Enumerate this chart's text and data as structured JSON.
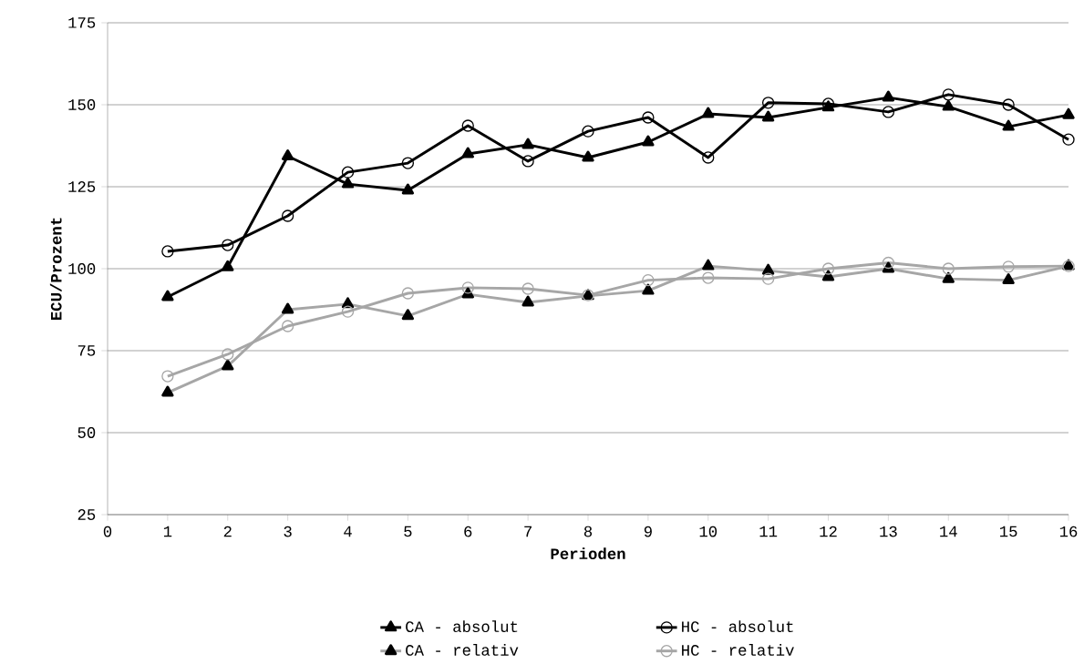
{
  "chart_data": {
    "type": "line",
    "xlabel": "Perioden",
    "ylabel": "ECU/Prozent",
    "x": [
      1,
      2,
      3,
      4,
      5,
      6,
      7,
      8,
      9,
      10,
      11,
      12,
      13,
      14,
      15,
      16
    ],
    "xlim": [
      0,
      16
    ],
    "xticks": [
      0,
      1,
      2,
      3,
      4,
      5,
      6,
      7,
      8,
      9,
      10,
      11,
      12,
      13,
      14,
      15,
      16
    ],
    "ylim": [
      25,
      175
    ],
    "yticks": [
      25,
      50,
      75,
      100,
      125,
      150,
      175
    ],
    "grid": "y",
    "legend": "bottom",
    "line_style": "solid",
    "series": [
      {
        "name": "CA - absolut",
        "color": "#000000",
        "marker": "triangle",
        "values": [
          91.4,
          100.5,
          134.3,
          125.8,
          123.9,
          135,
          137.8,
          133.9,
          138.6,
          147.2,
          146.1,
          149.2,
          152.2,
          149.4,
          143.3,
          146.9
        ]
      },
      {
        "name": "HC - absolut",
        "color": "#000000",
        "marker": "circle",
        "values": [
          105.3,
          107.2,
          116.1,
          129.4,
          132.2,
          143.6,
          132.8,
          141.9,
          146.1,
          133.9,
          150.6,
          150.3,
          147.8,
          153.1,
          150,
          139.4
        ]
      },
      {
        "name": "CA - relativ",
        "color": "#a6a6a6",
        "marker": "triangle",
        "values": [
          62.2,
          70.3,
          87.5,
          89.2,
          85.6,
          92.2,
          89.7,
          91.7,
          93.3,
          100.8,
          99.4,
          97.5,
          100,
          96.9,
          96.5,
          100.8
        ]
      },
      {
        "name": "HC - relativ",
        "color": "#a6a6a6",
        "marker": "circle",
        "values": [
          67.2,
          73.9,
          82.5,
          86.9,
          92.5,
          94.2,
          93.9,
          91.9,
          96.5,
          97.2,
          96.9,
          100,
          101.8,
          100,
          100.6,
          100.8
        ]
      }
    ]
  }
}
